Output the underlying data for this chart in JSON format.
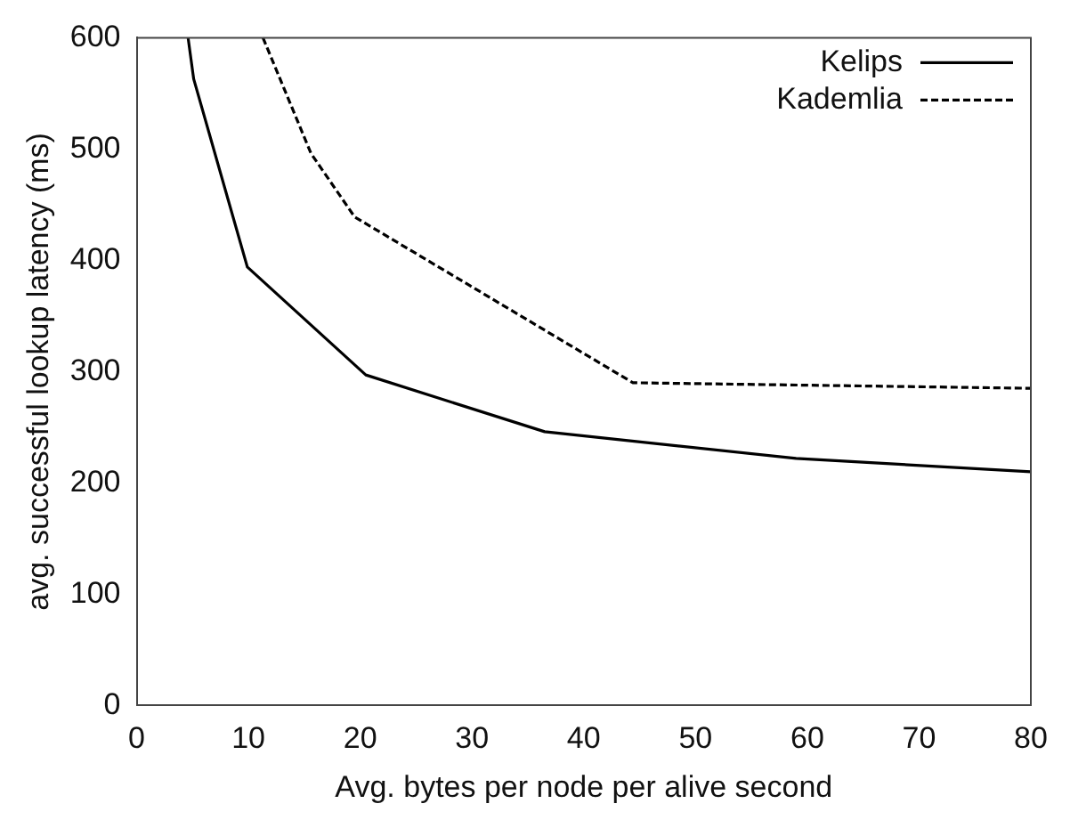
{
  "chart_data": {
    "type": "line",
    "xlabel": "Avg. bytes per node per alive second",
    "ylabel": "avg. successful lookup latency (ms)",
    "xlim": [
      0,
      80
    ],
    "xticks": [
      0,
      10,
      20,
      30,
      40,
      50,
      60,
      70,
      80
    ],
    "ylim": [
      0,
      600
    ],
    "yticks": [
      0,
      100,
      200,
      300,
      400,
      500,
      600
    ],
    "grid": false,
    "legend": "top right",
    "marker": "none",
    "series": [
      {
        "name": "Kelips",
        "color": "#000000",
        "line_style": "solid",
        "x": [
          4.6,
          5.1,
          9.9,
          20.5,
          36.5,
          59,
          80
        ],
        "values": [
          600,
          563,
          394,
          297,
          246,
          222,
          210
        ]
      },
      {
        "name": "Kademlia",
        "color": "#000000",
        "line_style": "dashed",
        "x": [
          11.3,
          15.6,
          19.5,
          44.4,
          80
        ],
        "values": [
          600,
          496,
          439,
          290,
          285
        ]
      }
    ]
  }
}
